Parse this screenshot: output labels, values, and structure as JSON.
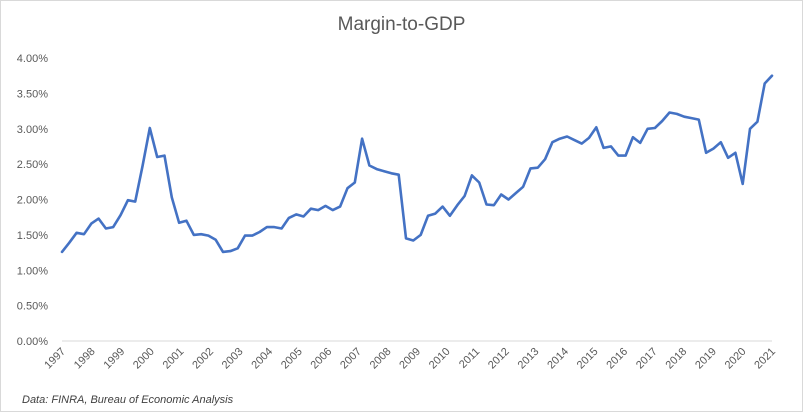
{
  "chart_data": {
    "type": "area",
    "title": "Margin-to-GDP",
    "source": "Data: FINRA, Bureau of Economic Analysis",
    "xlabel": "",
    "ylabel": "",
    "ylim": [
      0,
      4.0
    ],
    "y_ticks": [
      "0.00%",
      "0.50%",
      "1.00%",
      "1.50%",
      "2.00%",
      "2.50%",
      "3.00%",
      "3.50%",
      "4.00%"
    ],
    "x_ticks": [
      "1997",
      "1998",
      "1999",
      "2000",
      "2001",
      "2002",
      "2003",
      "2004",
      "2005",
      "2006",
      "2007",
      "2008",
      "2009",
      "2010",
      "2011",
      "2012",
      "2013",
      "2014",
      "2015",
      "2016",
      "2017",
      "2018",
      "2019",
      "2020",
      "2021"
    ],
    "grid": false,
    "colors": {
      "line": "#4472c4",
      "fill_lines": "#d9d9d9"
    },
    "series": [
      {
        "values": [
          1.26,
          1.39,
          1.53,
          1.51,
          1.66,
          1.73,
          1.59,
          1.61,
          1.78,
          1.99,
          1.97,
          2.47,
          3.01,
          2.6,
          2.62,
          2.03,
          1.67,
          1.7,
          1.5,
          1.51,
          1.49,
          1.43,
          1.26,
          1.27,
          1.31,
          1.49,
          1.49,
          1.54,
          1.61,
          1.61,
          1.59,
          1.74,
          1.79,
          1.76,
          1.87,
          1.85,
          1.91,
          1.85,
          1.9,
          2.16,
          2.24,
          2.86,
          2.48,
          2.43,
          2.4,
          2.37,
          2.35,
          1.45,
          1.42,
          1.5,
          1.77,
          1.8,
          1.9,
          1.77,
          1.92,
          2.05,
          2.34,
          2.24,
          1.93,
          1.92,
          2.07,
          2.0,
          2.09,
          2.18,
          2.44,
          2.45,
          2.57,
          2.81,
          2.86,
          2.89,
          2.84,
          2.79,
          2.87,
          3.02,
          2.73,
          2.75,
          2.62,
          2.62,
          2.88,
          2.8,
          3.0,
          3.01,
          3.11,
          3.23,
          3.21,
          3.17,
          3.15,
          3.13,
          2.66,
          2.72,
          2.81,
          2.59,
          2.66,
          2.22,
          3.0,
          3.1,
          3.64,
          3.75
        ]
      }
    ]
  }
}
